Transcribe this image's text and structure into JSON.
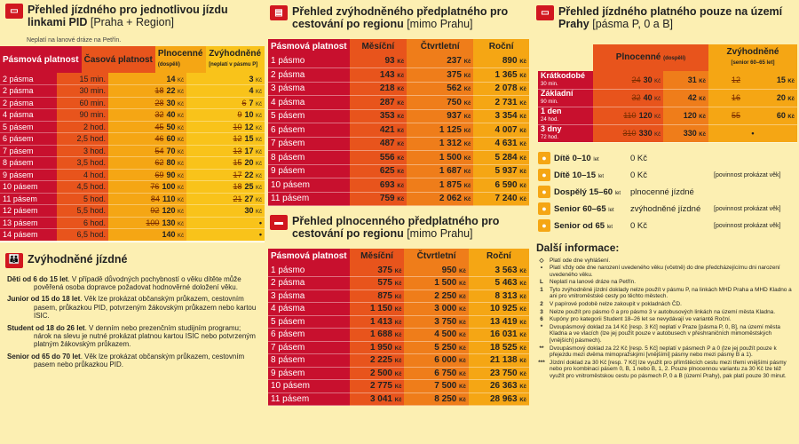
{
  "s1": {
    "title": "Přehled jízdného pro jednotlivou jízdu linkami PID",
    "title_light": "[Praha + Region]",
    "note": "Neplatí na lanové dráze na Petřín.",
    "headers": [
      "Pásmová platnost",
      "Časová platnost",
      "Plnocenné",
      "(dospělí)",
      "Zvýhodněné",
      "[neplatí v pásmu P]"
    ],
    "rows": [
      [
        "2 pásma",
        "15 min.",
        "",
        "14",
        "3"
      ],
      [
        "2 pásma",
        "30 min.",
        "18",
        "22",
        "4"
      ],
      [
        "2 pásma",
        "60 min.",
        "28",
        "30",
        "6",
        "7"
      ],
      [
        "4 pásma",
        "90 min.",
        "32",
        "40",
        "9",
        "10"
      ],
      [
        "5 pásem",
        "2 hod.",
        "45",
        "50",
        "10",
        "12"
      ],
      [
        "6 pásem",
        "2,5 hod.",
        "46",
        "60",
        "12",
        "15"
      ],
      [
        "7 pásem",
        "3 hod.",
        "54",
        "70",
        "13",
        "17"
      ],
      [
        "8 pásem",
        "3,5 hod.",
        "62",
        "80",
        "15",
        "20"
      ],
      [
        "9 pásem",
        "4 hod.",
        "69",
        "90",
        "17",
        "22"
      ],
      [
        "10 pásem",
        "4,5 hod.",
        "76",
        "100",
        "18",
        "25"
      ],
      [
        "11 pásem",
        "5 hod.",
        "84",
        "110",
        "21",
        "27"
      ],
      [
        "12 pásem",
        "5,5 hod.",
        "92",
        "120",
        "30"
      ],
      [
        "13 pásem",
        "6 hod.",
        "100",
        "130",
        "•"
      ],
      [
        "14 pásem",
        "6,5 hod.",
        "",
        "140",
        "•"
      ]
    ]
  },
  "s2": {
    "title": "Zvýhodněné jízdné",
    "items": [
      {
        "k": "Děti od 6 do 15 let",
        "v": ". V případě důvodných pochybností o věku dítěte může pověřená osoba dopravce požadovat hodnověrné doložení věku."
      },
      {
        "k": "Junior od 15 do 18 let",
        "v": ". Věk lze prokázat občanským průkazem, cestovním pasem, průkazkou PID, potvrzeným žákovským průkazem nebo kartou ISIC."
      },
      {
        "k": "Student od 18 do 26 let",
        "v": ". V denním nebo prezenčním studijním programu; nárok na slevu je nutné prokázat platnou kartou ISIC nebo potvrzeným platným žákovským průkazem."
      },
      {
        "k": "Senior od 65 do 70 let",
        "v": ". Věk lze prokázat občanským průkazem, cestovním pasem nebo průkazkou PID."
      }
    ]
  },
  "s3": {
    "title": "Přehled zvýhodněného předplatného pro cestování po regionu",
    "title_light": "[mimo Prahu]",
    "headers": [
      "Pásmová platnost",
      "Měsíční",
      "Čtvrtletní",
      "Roční"
    ],
    "rows": [
      [
        "1 pásmo",
        "93",
        "237",
        "890"
      ],
      [
        "2 pásma",
        "143",
        "375",
        "1 365"
      ],
      [
        "3 pásma",
        "218",
        "562",
        "2 078"
      ],
      [
        "4 pásma",
        "287",
        "750",
        "2 731"
      ],
      [
        "5 pásem",
        "353",
        "937",
        "3 354"
      ],
      [
        "6 pásem",
        "421",
        "1 125",
        "4 007"
      ],
      [
        "7 pásem",
        "487",
        "1 312",
        "4 631"
      ],
      [
        "8 pásem",
        "556",
        "1 500",
        "5 284"
      ],
      [
        "9 pásem",
        "625",
        "1 687",
        "5 937"
      ],
      [
        "10 pásem",
        "693",
        "1 875",
        "6 590"
      ],
      [
        "11 pásem",
        "759",
        "2 062",
        "7 240"
      ]
    ]
  },
  "s4": {
    "title": "Přehled plnocenného předplatného pro cestování po regionu",
    "title_light": "[mimo Prahu]",
    "headers": [
      "Pásmová platnost",
      "Měsíční",
      "Čtvrtletní",
      "Roční"
    ],
    "rows": [
      [
        "1 pásmo",
        "375",
        "950",
        "3 563"
      ],
      [
        "2 pásma",
        "575",
        "1 500",
        "5 463"
      ],
      [
        "3 pásma",
        "875",
        "2 250",
        "8 313"
      ],
      [
        "4 pásma",
        "1 150",
        "3 000",
        "10 925"
      ],
      [
        "5 pásem",
        "1 413",
        "3 750",
        "13 419"
      ],
      [
        "6 pásem",
        "1 688",
        "4 500",
        "16 031"
      ],
      [
        "7 pásem",
        "1 950",
        "5 250",
        "18 525"
      ],
      [
        "8 pásem",
        "2 225",
        "6 000",
        "21 138"
      ],
      [
        "9 pásem",
        "2 500",
        "6 750",
        "23 750"
      ],
      [
        "10 pásem",
        "2 775",
        "7 500",
        "26 363"
      ],
      [
        "11 pásem",
        "3 041",
        "8 250",
        "28 963"
      ]
    ]
  },
  "s5": {
    "title": "Přehled jízdného platného pouze na území Prahy",
    "title_light": "[pásma P, 0 a B]",
    "headers": [
      "Plnocenné",
      "(dospělí)",
      "Zvýhodněné",
      "[senior 60–65 let]"
    ],
    "rows": [
      [
        "Krátkodobé",
        "30 min.",
        "24",
        "30",
        "31",
        "12",
        "15"
      ],
      [
        "Základní",
        "90 min.",
        "32",
        "40",
        "42",
        "16",
        "20"
      ],
      [
        "1 den",
        "24 hod.",
        "110",
        "120",
        "120",
        "55",
        "60"
      ],
      [
        "3 dny",
        "72 hod.",
        "310",
        "330",
        "330",
        "•"
      ]
    ]
  },
  "cats": [
    {
      "k": "Dítě 0–10",
      "u": "let",
      "v": "0 Kč",
      "n": ""
    },
    {
      "k": "Dítě 10–15",
      "u": "let",
      "v": "0 Kč",
      "n": "[povinnost prokázat věk]"
    },
    {
      "k": "Dospělý 15–60",
      "u": "let",
      "v": "plnocenné jízdné",
      "n": ""
    },
    {
      "k": "Senior 60–65",
      "u": "let",
      "v": "zvýhodněné jízdné",
      "n": "[povinnost prokázat věk]"
    },
    {
      "k": "Senior od 65",
      "u": "let",
      "v": "0 Kč",
      "n": "[povinnost prokázat věk]"
    }
  ],
  "info_title": "Další informace:",
  "info": [
    [
      "◇",
      "Platí ode dne vyhlášení."
    ],
    [
      "•",
      "Platí vždy ode dne narození uvedeného věku (včetně) do dne předcházejícímu dni narození uvedeného věku."
    ],
    [
      "L",
      "Neplatí na lanové dráze na Petřín."
    ],
    [
      "1",
      "Tyto zvýhodněné jízdní doklady nelze použít v pásmu P, na linkách MHD Praha a MHD Kladno a ani pro vnitroměstské cesty po těchto městech."
    ],
    [
      "2",
      "V papírové podobě nelze zakoupit v pokladnách ČD."
    ],
    [
      "3",
      "Nelze použít pro pásmo 0 a pro pásmo 3 v autobusových linkách na území města Kladna."
    ],
    [
      "6",
      "Kupóny pro kategorii Student 18–26 let se nevydávají ve variantě Roční."
    ],
    [
      "*",
      "Dvoupásmový doklad za 14 Kč [resp. 3 Kč] neplatí v Praze [pásma P, 0, B], na území města Kladna a ve vlacích (lze jej použít pouze v autobusech v přeshraničních mimoměstských [vnějších] pásmech)."
    ],
    [
      "**",
      "Dvoupásmový doklad za 22 Kč [resp. 5 Kč] neplatí v pásmech P a 0 (lze jej použít pouze k přejezdu mezi dvěma mimopražskými [vnějšími] pásmy nebo mezi pásmy B a 1)."
    ],
    [
      "***",
      "Jízdní doklad za 30 Kč [resp. 7 Kč] lze využít pro přímštěcích cestu mezi třemi vnějšími pásmy nebo pro kombinaci pásem 0, B, 1 nebo B, 1, 2. Pouze plnocennou variantu za 30 Kč lze též využít pro vnitroměstskou cestu po pásmech P, 0 a B (území Prahy), pak platí pouze 30 minut."
    ]
  ]
}
